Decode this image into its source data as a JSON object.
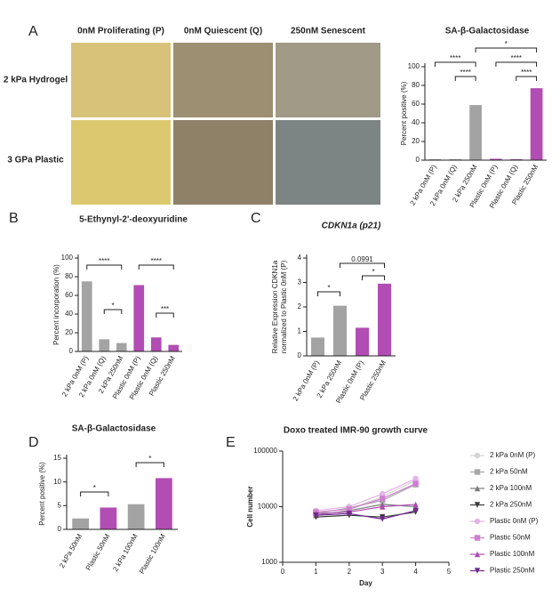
{
  "panel_labels": [
    "A",
    "B",
    "C",
    "D",
    "E"
  ],
  "image_grid": {
    "columns": [
      "0nM Proliferating (P)",
      "0nM Quiescent (Q)",
      "250nM Senescent"
    ],
    "rows": [
      "2 kPa Hydrogel",
      "3 GPa Plastic"
    ]
  },
  "chart_data": [
    {
      "type": "bar",
      "title": "SA-β-Galactosidase",
      "ylabel": "Percent positive (%)",
      "categories": [
        "2 kPa 0nM (P)",
        "2 kPa 0nM (Q)",
        "2 kPa 250nM",
        "Plastic 0nM (P)",
        "Plastic 0nM (Q)",
        "Plastic 250nM"
      ],
      "values": [
        1,
        1,
        59,
        1.5,
        1,
        77
      ],
      "colors": [
        "#a3a3a3",
        "#a3a3a3",
        "#a3a3a3",
        "#b24db3",
        "#b24db3",
        "#b24db3"
      ],
      "ylim": [
        0,
        100
      ],
      "yticks": [
        0,
        20,
        40,
        60,
        80,
        100
      ],
      "annotations": [
        "****",
        "****",
        "*",
        "****",
        "****"
      ]
    },
    {
      "type": "bar",
      "title": "5-Ethynyl-2'-deoxyuridine",
      "ylabel": "Percent incorporation (%)",
      "categories": [
        "2 kPa 0nM (P)",
        "2 kPa 0nM (Q)",
        "2 kPa 250nM",
        "Plastic 0nM (P)",
        "Plastic 0nM (Q)",
        "Plastic 250nM"
      ],
      "values": [
        75,
        13,
        9,
        71,
        15,
        7
      ],
      "colors": [
        "#a3a3a3",
        "#a3a3a3",
        "#a3a3a3",
        "#b24db3",
        "#b24db3",
        "#b24db3"
      ],
      "ylim": [
        0,
        100
      ],
      "yticks": [
        0,
        20,
        40,
        60,
        80,
        100
      ],
      "annotations": [
        "****",
        "*",
        "****",
        "***"
      ]
    },
    {
      "type": "bar",
      "title": "CDKN1a (p21)",
      "ylabel": "Relative Expression CDKN1a",
      "ylabel_note": "normalized to Plastic 0nM (P)",
      "categories": [
        "2 kPa 0nM (P)",
        "2 kPa 250nM",
        "Plastic 0nM (P)",
        "Plastic 250nM"
      ],
      "values": [
        0.75,
        2.05,
        1.15,
        2.95
      ],
      "colors": [
        "#a3a3a3",
        "#a3a3a3",
        "#b24db3",
        "#b24db3"
      ],
      "ylim": [
        0,
        4
      ],
      "yticks": [
        0,
        1,
        2,
        3,
        4
      ],
      "annotations": [
        "*",
        "0.0991",
        "*"
      ]
    },
    {
      "type": "bar",
      "title": "SA-β-Galactosidase",
      "ylabel": "Percent positive (%)",
      "categories": [
        "2 kPa 50nM",
        "Plastic 50nM",
        "2 kPa 100nM",
        "Plastic 100nM"
      ],
      "values": [
        2.3,
        4.6,
        5.3,
        10.8
      ],
      "colors": [
        "#a3a3a3",
        "#b24db3",
        "#a3a3a3",
        "#b24db3"
      ],
      "ylim": [
        0,
        15
      ],
      "yticks": [
        0,
        5,
        10,
        15
      ],
      "annotations": [
        "*",
        "*"
      ]
    },
    {
      "type": "line",
      "title": "Doxo treated IMR-90 growth curve",
      "xlabel": "Day",
      "ylabel": "Cell number",
      "x": [
        1,
        2,
        3,
        4
      ],
      "xlim": [
        0,
        5
      ],
      "xticks": [
        0,
        1,
        2,
        3,
        4,
        5
      ],
      "ylim": [
        1000,
        100000
      ],
      "yticks": [
        1000,
        10000,
        100000
      ],
      "ylog": true,
      "series": [
        {
          "name": "2 kPa 0nM (P)",
          "color": "#d4d4d4",
          "marker": "circle",
          "values": [
            8000,
            9000,
            15000,
            30000
          ]
        },
        {
          "name": "2 kPa 50nM",
          "color": "#a8a8a8",
          "marker": "square",
          "values": [
            7500,
            9500,
            13000,
            25000
          ]
        },
        {
          "name": "2 kPa 100nM",
          "color": "#7d7d7d",
          "marker": "triangle",
          "values": [
            7000,
            8500,
            11000,
            10000
          ]
        },
        {
          "name": "2 kPa 250nM",
          "color": "#3a3a3a",
          "marker": "triangle-down",
          "values": [
            6500,
            7000,
            6500,
            8000
          ]
        },
        {
          "name": "Plastic 0nM (P)",
          "color": "#e4b3e6",
          "marker": "circle",
          "values": [
            8500,
            10000,
            17000,
            32000
          ]
        },
        {
          "name": "Plastic 50nM",
          "color": "#cf7fd1",
          "marker": "square",
          "values": [
            8000,
            9000,
            14000,
            26000
          ]
        },
        {
          "name": "Plastic 100nM",
          "color": "#b04cb3",
          "marker": "triangle",
          "values": [
            7500,
            8000,
            10000,
            11000
          ]
        },
        {
          "name": "Plastic 250nM",
          "color": "#6e2a8c",
          "marker": "triangle-down",
          "values": [
            7000,
            7500,
            6000,
            8500
          ]
        }
      ]
    }
  ]
}
